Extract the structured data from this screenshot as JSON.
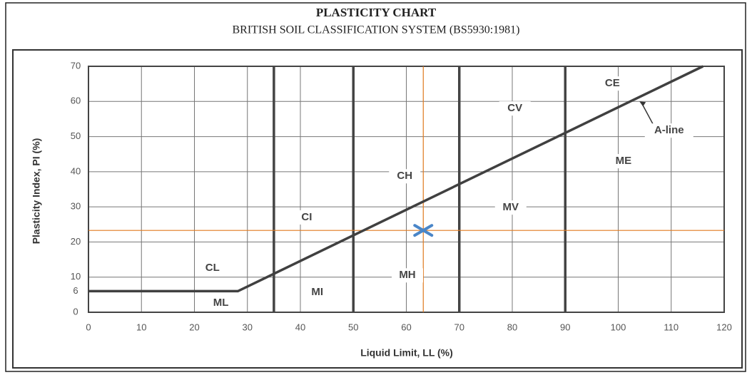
{
  "chart_data": {
    "type": "line",
    "title": "PLASTICITY CHART",
    "subtitle": "BRITISH SOIL CLASSIFICATION SYSTEM (BS5930:1981)",
    "x_label": "Liquid Limit, LL (%)",
    "y_label": "Plasticity Index, PI (%)",
    "xlim": [
      0,
      120
    ],
    "ylim": [
      0,
      70
    ],
    "xticks": [
      0,
      10,
      20,
      30,
      40,
      50,
      60,
      70,
      80,
      90,
      100,
      110,
      120
    ],
    "yticks": [
      0,
      6,
      10,
      20,
      30,
      40,
      50,
      60,
      70
    ],
    "grid": true,
    "boundaries": [
      35,
      50,
      70,
      90
    ],
    "series": [
      {
        "name": "A-line",
        "color": "#404040",
        "x": [
          0,
          28.2,
          116
        ],
        "values": [
          6,
          6,
          70
        ]
      }
    ],
    "annotation_target": {
      "x": 104,
      "y": 60
    },
    "point": {
      "x": 63.2,
      "y": 23.3,
      "color": "#4a86c8",
      "guide_color": "#e07a1f"
    },
    "zones": [
      {
        "label": "CL",
        "x": 23.4,
        "y": 12.6
      },
      {
        "label": "ML",
        "x": 25,
        "y": 2.6
      },
      {
        "label": "CI",
        "x": 41.2,
        "y": 27
      },
      {
        "label": "MI",
        "x": 43.2,
        "y": 5.7
      },
      {
        "label": "CH",
        "x": 59.7,
        "y": 38.7
      },
      {
        "label": "MH",
        "x": 60.2,
        "y": 10.5
      },
      {
        "label": "CV",
        "x": 80.5,
        "y": 58
      },
      {
        "label": "MV",
        "x": 79.7,
        "y": 29.8
      },
      {
        "label": "CE",
        "x": 98.9,
        "y": 65.1
      },
      {
        "label": "ME",
        "x": 101,
        "y": 43
      }
    ],
    "annotation_position": {
      "x": 109.6,
      "y": 51.7
    }
  }
}
